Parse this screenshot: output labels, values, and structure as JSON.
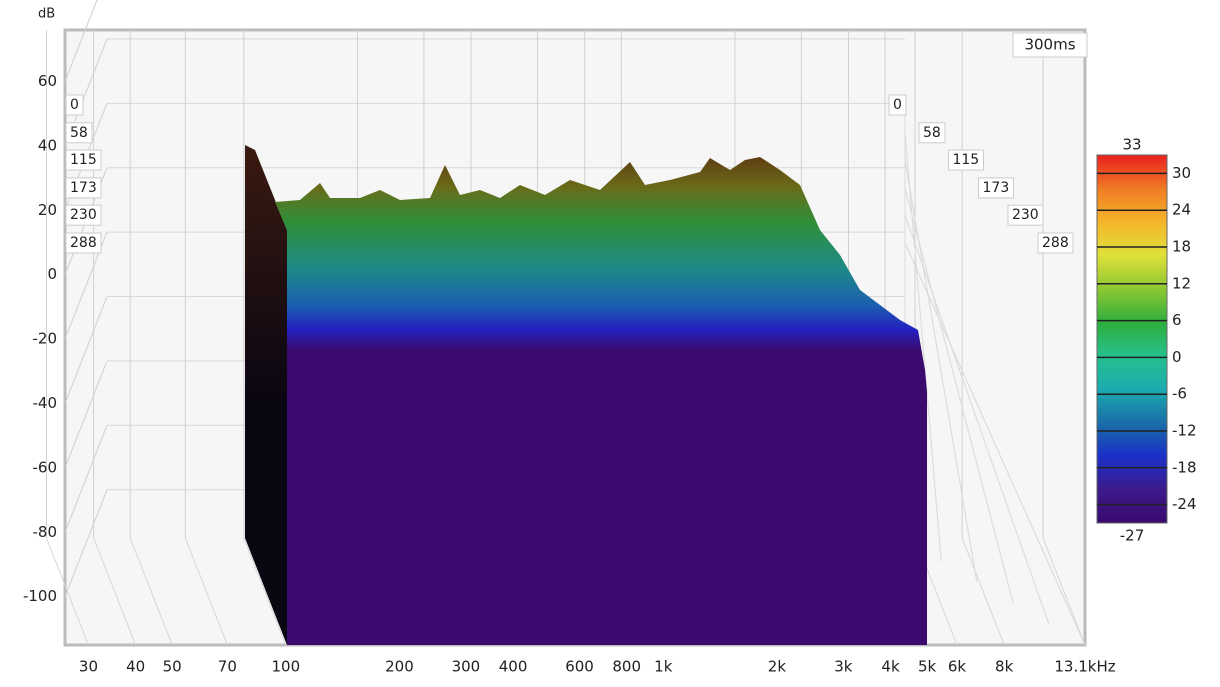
{
  "chart_data": {
    "type": "waterfall",
    "y_label": "dB",
    "ylim": [
      -115,
      76
    ],
    "yticks": [
      60,
      40,
      20,
      0,
      -20,
      -40,
      -60,
      -80,
      -100
    ],
    "x_scale": "log",
    "xlim": [
      26,
      13100
    ],
    "xticks": [
      30,
      40,
      50,
      70,
      100,
      200,
      300,
      400,
      600,
      800,
      {
        "value": 1000,
        "label": "1k"
      },
      {
        "value": 2000,
        "label": "2k"
      },
      {
        "value": 3000,
        "label": "3k"
      },
      {
        "value": 4000,
        "label": "4k"
      },
      {
        "value": 5000,
        "label": "5k"
      },
      {
        "value": 6000,
        "label": "6k"
      },
      {
        "value": 8000,
        "label": "8k"
      },
      {
        "value": 13100,
        "label": "13.1kHz"
      }
    ],
    "time_ticks": [
      0,
      58,
      115,
      173,
      230,
      288
    ],
    "time_label": "300ms",
    "grid": true,
    "colorbar": {
      "zlim": [
        -27,
        33
      ],
      "ticks": [
        30,
        24,
        18,
        12,
        6,
        0,
        -6,
        -12,
        -18,
        -24
      ],
      "colors": [
        "#e8201c",
        "#f07a24",
        "#f5b52a",
        "#dfe03a",
        "#8cc832",
        "#2fae3c",
        "#26c08e",
        "#1cabb0",
        "#1a6fa8",
        "#1a30c8",
        "#3c1a8c",
        "#3a0a6e"
      ]
    }
  }
}
